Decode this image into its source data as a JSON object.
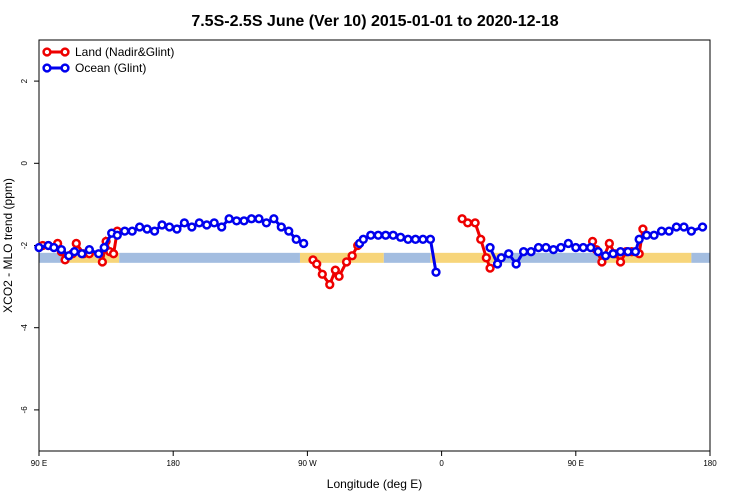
{
  "chart_data": {
    "type": "line",
    "title": "7.5S-2.5S June (Ver 10)   2015-01-01 to 2020-12-18",
    "xlabel": "Longitude (deg E)",
    "ylabel": "XCO2 - MLO trend (ppm)",
    "xlim": [
      90,
      450
    ],
    "ylim": [
      -7,
      3
    ],
    "x_ticks": [
      {
        "value": 90,
        "label": "90 E"
      },
      {
        "value": 162,
        "label": "180"
      },
      {
        "value": 234,
        "label": "90 W"
      },
      {
        "value": 306,
        "label": "0"
      },
      {
        "value": 378,
        "label": "90 E"
      },
      {
        "value": 450,
        "label": "180"
      }
    ],
    "y_ticks": [
      -6,
      -4,
      -2,
      0,
      2
    ],
    "legend_position": "top-left",
    "grid": false,
    "bands": [
      {
        "color": "#f7d57a",
        "segments": [
          [
            104,
            133
          ],
          [
            230,
            275
          ],
          [
            300,
            339
          ],
          [
            390,
            440
          ]
        ],
        "y": -2.3
      },
      {
        "color": "#a3bde0",
        "segments": [
          [
            90,
            104
          ],
          [
            133,
            230
          ],
          [
            275,
            300
          ],
          [
            339,
            390
          ],
          [
            440,
            450
          ]
        ],
        "y": -2.3
      }
    ],
    "series": [
      {
        "name": "Land (Nadir&Glint)",
        "color": "#ee0000",
        "segments": [
          [
            [
              92,
              -2.0
            ],
            [
              95,
              -2.0
            ],
            [
              100,
              -1.95
            ],
            [
              102,
              -2.15
            ],
            [
              104,
              -2.35
            ],
            [
              108,
              -2.2
            ],
            [
              110,
              -1.95
            ],
            [
              114,
              -2.2
            ],
            [
              117,
              -2.2
            ]
          ],
          [
            [
              124,
              -2.4
            ],
            [
              126,
              -1.9
            ],
            [
              128,
              -2.15
            ],
            [
              130,
              -2.2
            ],
            [
              132,
              -1.65
            ]
          ],
          [
            [
              237,
              -2.35
            ],
            [
              239,
              -2.45
            ],
            [
              242,
              -2.7
            ],
            [
              246,
              -2.95
            ],
            [
              249,
              -2.6
            ],
            [
              251,
              -2.75
            ],
            [
              255,
              -2.4
            ],
            [
              258,
              -2.25
            ],
            [
              261,
              -2.0
            ]
          ],
          [
            [
              317,
              -1.35
            ],
            [
              320,
              -1.45
            ],
            [
              324,
              -1.45
            ],
            [
              327,
              -1.85
            ],
            [
              330,
              -2.3
            ],
            [
              332,
              -2.55
            ]
          ],
          [
            [
              387,
              -1.9
            ],
            [
              389,
              -2.1
            ],
            [
              392,
              -2.4
            ],
            [
              396,
              -1.95
            ],
            [
              399,
              -2.2
            ],
            [
              402,
              -2.4
            ],
            [
              405,
              -2.15
            ],
            [
              408,
              -2.15
            ],
            [
              412,
              -2.2
            ],
            [
              414,
              -1.6
            ]
          ]
        ]
      },
      {
        "name": "Ocean (Glint)",
        "color": "#0000ee",
        "segments": [
          [
            [
              90,
              -2.05
            ],
            [
              95,
              -2.0
            ],
            [
              98,
              -2.05
            ],
            [
              102,
              -2.1
            ],
            [
              106,
              -2.25
            ],
            [
              109,
              -2.15
            ],
            [
              113,
              -2.2
            ],
            [
              117,
              -2.1
            ],
            [
              122,
              -2.2
            ],
            [
              125,
              -2.05
            ],
            [
              129,
              -1.7
            ],
            [
              132,
              -1.75
            ],
            [
              136,
              -1.65
            ],
            [
              140,
              -1.65
            ],
            [
              144,
              -1.55
            ],
            [
              148,
              -1.6
            ],
            [
              152,
              -1.65
            ],
            [
              156,
              -1.5
            ],
            [
              160,
              -1.55
            ],
            [
              164,
              -1.6
            ],
            [
              168,
              -1.45
            ],
            [
              172,
              -1.55
            ],
            [
              176,
              -1.45
            ],
            [
              180,
              -1.5
            ],
            [
              184,
              -1.45
            ],
            [
              188,
              -1.55
            ],
            [
              192,
              -1.35
            ],
            [
              196,
              -1.4
            ],
            [
              200,
              -1.4
            ],
            [
              204,
              -1.35
            ],
            [
              208,
              -1.35
            ],
            [
              212,
              -1.45
            ],
            [
              216,
              -1.35
            ],
            [
              220,
              -1.55
            ],
            [
              224,
              -1.65
            ],
            [
              228,
              -1.85
            ],
            [
              232,
              -1.95
            ]
          ],
          [
            [
              262,
              -1.95
            ],
            [
              264,
              -1.85
            ],
            [
              268,
              -1.75
            ],
            [
              272,
              -1.75
            ],
            [
              276,
              -1.75
            ],
            [
              280,
              -1.75
            ],
            [
              284,
              -1.8
            ],
            [
              288,
              -1.85
            ],
            [
              292,
              -1.85
            ],
            [
              296,
              -1.85
            ],
            [
              300,
              -1.85
            ],
            [
              303,
              -2.65
            ]
          ],
          [
            [
              332,
              -2.05
            ],
            [
              336,
              -2.45
            ],
            [
              338,
              -2.3
            ],
            [
              342,
              -2.2
            ],
            [
              346,
              -2.45
            ],
            [
              350,
              -2.15
            ],
            [
              354,
              -2.15
            ],
            [
              358,
              -2.05
            ],
            [
              362,
              -2.05
            ],
            [
              366,
              -2.1
            ],
            [
              370,
              -2.05
            ],
            [
              374,
              -1.95
            ],
            [
              378,
              -2.05
            ],
            [
              382,
              -2.05
            ],
            [
              386,
              -2.05
            ],
            [
              390,
              -2.15
            ],
            [
              394,
              -2.25
            ],
            [
              398,
              -2.2
            ],
            [
              402,
              -2.15
            ],
            [
              406,
              -2.15
            ],
            [
              410,
              -2.15
            ],
            [
              412,
              -1.85
            ],
            [
              416,
              -1.75
            ],
            [
              420,
              -1.75
            ],
            [
              424,
              -1.65
            ],
            [
              428,
              -1.65
            ],
            [
              432,
              -1.55
            ],
            [
              436,
              -1.55
            ],
            [
              440,
              -1.65
            ],
            [
              446,
              -1.55
            ]
          ]
        ]
      }
    ]
  }
}
